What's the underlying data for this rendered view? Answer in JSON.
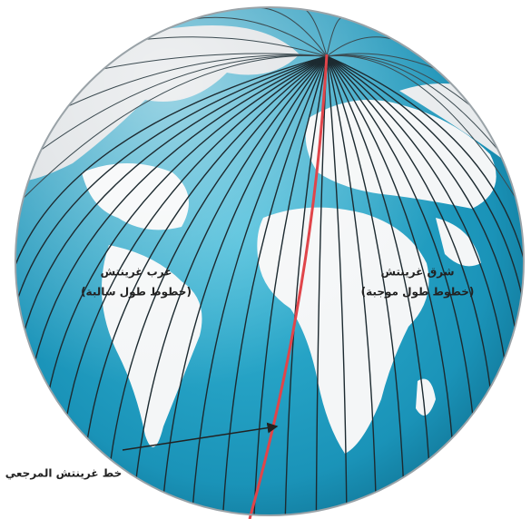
{
  "labels": {
    "west": {
      "line1": "غرب غرينتش",
      "line2": "(خطوط طول سالبة)"
    },
    "east": {
      "line1": "شرق غرينتش",
      "line2": "(خطوط طول موجبة)"
    },
    "prime": "خط غرينتش المرجعي"
  }
}
